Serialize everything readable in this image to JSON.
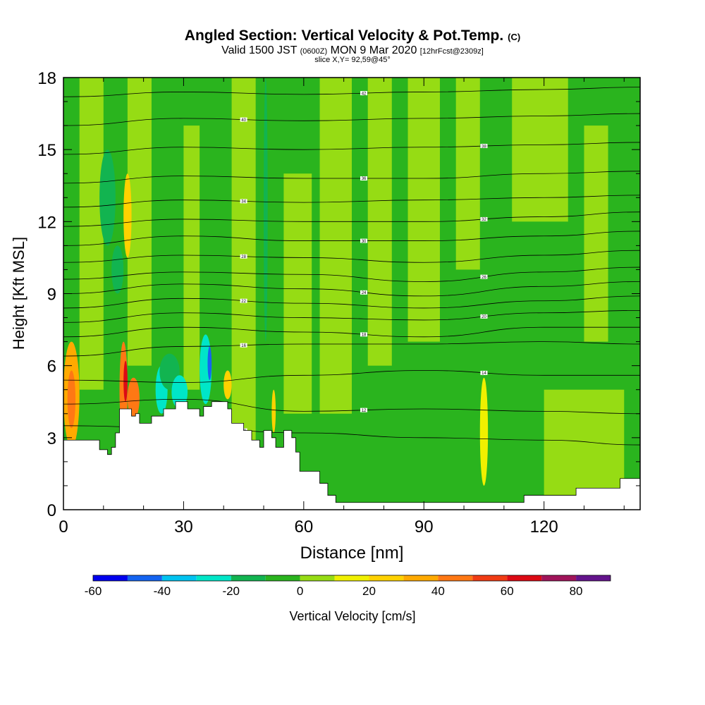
{
  "chart_data": {
    "type": "heatmap",
    "title": "Angled Section: Vertical Velocity & Pot.Temp.",
    "title_unit": "(C)",
    "subtitle": {
      "valid": "Valid 1500 JST",
      "utc": "(0600Z)",
      "date": "MON 9 Mar 2020",
      "forecast": "[12hrFcst@2309z]"
    },
    "slice_label": "slice X,Y= 92,59@45°",
    "xlabel": "Distance [nm]",
    "ylabel": "Height [Kft MSL]",
    "xlim": [
      0,
      144
    ],
    "ylim": [
      0,
      18
    ],
    "x_ticks": [
      "0",
      "30",
      "60",
      "90",
      "120"
    ],
    "y_ticks": [
      "0",
      "3",
      "6",
      "9",
      "12",
      "15",
      "18"
    ],
    "terrain_kft": [
      [
        0,
        2.9
      ],
      [
        3,
        2.9
      ],
      [
        6,
        2.9
      ],
      [
        9,
        2.5
      ],
      [
        11,
        2.3
      ],
      [
        12,
        2.6
      ],
      [
        13,
        3.2
      ],
      [
        14,
        4.2
      ],
      [
        16,
        4.2
      ],
      [
        17,
        3.9
      ],
      [
        18,
        4.0
      ],
      [
        19,
        3.6
      ],
      [
        21,
        3.6
      ],
      [
        22,
        3.9
      ],
      [
        24,
        3.9
      ],
      [
        25,
        4.2
      ],
      [
        27,
        4.2
      ],
      [
        28,
        4.5
      ],
      [
        30,
        4.5
      ],
      [
        31,
        4.2
      ],
      [
        33,
        4.2
      ],
      [
        34,
        3.9
      ],
      [
        35,
        4.3
      ],
      [
        37,
        4.5
      ],
      [
        40,
        4.5
      ],
      [
        41,
        4.2
      ],
      [
        42,
        3.6
      ],
      [
        45,
        3.3
      ],
      [
        47,
        2.9
      ],
      [
        49,
        2.6
      ],
      [
        50,
        3.3
      ],
      [
        52,
        3.0
      ],
      [
        53,
        2.6
      ],
      [
        55,
        3.3
      ],
      [
        57,
        3.0
      ],
      [
        58,
        2.4
      ],
      [
        59,
        1.6
      ],
      [
        62,
        1.6
      ],
      [
        64,
        1.1
      ],
      [
        66,
        0.6
      ],
      [
        68,
        0.3
      ],
      [
        80,
        0.3
      ],
      [
        90,
        0.3
      ],
      [
        100,
        0.3
      ],
      [
        110,
        0.3
      ],
      [
        114,
        0.3
      ],
      [
        115,
        0.6
      ],
      [
        125,
        0.6
      ],
      [
        128,
        0.9
      ],
      [
        138,
        0.9
      ],
      [
        139,
        1.3
      ],
      [
        144,
        1.3
      ]
    ],
    "colorbar": {
      "label": "Vertical Velocity [cm/s]",
      "tick_labels": [
        "-60",
        "-40",
        "-20",
        "0",
        "20",
        "40",
        "60",
        "80"
      ],
      "levels": [
        -60,
        -50,
        -40,
        -30,
        -20,
        -10,
        0,
        10,
        20,
        30,
        40,
        50,
        60,
        70,
        80,
        90
      ],
      "colors": [
        "#0000ee",
        "#1464f0",
        "#00c3f0",
        "#00e6c8",
        "#12b450",
        "#2ab41e",
        "#96dc14",
        "#f0f000",
        "#ffd200",
        "#ffaa00",
        "#ff7814",
        "#f03c14",
        "#dc0a14",
        "#a0145a",
        "#64148c"
      ]
    },
    "background_regions": [
      {
        "x": [
          0,
          144
        ],
        "y": [
          0,
          18
        ],
        "level": -10
      },
      {
        "x": [
          4,
          10
        ],
        "y": [
          5,
          18
        ],
        "level": 0
      },
      {
        "x": [
          16,
          22
        ],
        "y": [
          6,
          18
        ],
        "level": 0
      },
      {
        "x": [
          30,
          34
        ],
        "y": [
          5,
          16
        ],
        "level": 0
      },
      {
        "x": [
          42,
          48
        ],
        "y": [
          2,
          18
        ],
        "level": 0
      },
      {
        "x": [
          55,
          62
        ],
        "y": [
          4,
          14
        ],
        "level": 0
      },
      {
        "x": [
          64,
          72
        ],
        "y": [
          4,
          18
        ],
        "level": 0
      },
      {
        "x": [
          76,
          82
        ],
        "y": [
          6,
          18
        ],
        "level": 0
      },
      {
        "x": [
          86,
          94
        ],
        "y": [
          7,
          18
        ],
        "level": 0
      },
      {
        "x": [
          98,
          104
        ],
        "y": [
          10,
          18
        ],
        "level": 0
      },
      {
        "x": [
          112,
          126
        ],
        "y": [
          12,
          18
        ],
        "level": 0
      },
      {
        "x": [
          130,
          136
        ],
        "y": [
          7,
          16
        ],
        "level": 0
      },
      {
        "x": [
          70,
          90
        ],
        "y": [
          0,
          3
        ],
        "level": -10
      },
      {
        "x": [
          120,
          140
        ],
        "y": [
          0,
          5
        ],
        "level": 0
      }
    ],
    "velocity_cells": [
      {
        "x": [
          0,
          4
        ],
        "y": [
          2.6,
          7.0
        ],
        "level": 30
      },
      {
        "x": [
          1,
          3
        ],
        "y": [
          3.4,
          5.8
        ],
        "level": 40
      },
      {
        "x": [
          14,
          16
        ],
        "y": [
          3.0,
          7.0
        ],
        "level": 40
      },
      {
        "x": [
          15,
          16
        ],
        "y": [
          4.5,
          6.2
        ],
        "level": 60
      },
      {
        "x": [
          16,
          19
        ],
        "y": [
          3.8,
          5.5
        ],
        "level": 40
      },
      {
        "x": [
          15,
          17
        ],
        "y": [
          10.5,
          14.0
        ],
        "level": 20
      },
      {
        "x": [
          23,
          26
        ],
        "y": [
          4.0,
          6.0
        ],
        "level": -30
      },
      {
        "x": [
          24,
          29
        ],
        "y": [
          5.0,
          6.5
        ],
        "level": -20
      },
      {
        "x": [
          27,
          31
        ],
        "y": [
          4.2,
          5.6
        ],
        "level": -30
      },
      {
        "x": [
          34,
          37
        ],
        "y": [
          4.4,
          7.3
        ],
        "level": -30
      },
      {
        "x": [
          36,
          37
        ],
        "y": [
          5.4,
          6.8
        ],
        "level": -50
      },
      {
        "x": [
          40,
          42
        ],
        "y": [
          4.6,
          5.8
        ],
        "level": 20
      },
      {
        "x": [
          52,
          53
        ],
        "y": [
          3.2,
          5.0
        ],
        "level": 20
      },
      {
        "x": [
          104,
          106
        ],
        "y": [
          1.0,
          5.5
        ],
        "level": 10
      },
      {
        "x": [
          9,
          13
        ],
        "y": [
          11.0,
          15.0
        ],
        "level": -20
      },
      {
        "x": [
          12,
          15
        ],
        "y": [
          9.0,
          11.0
        ],
        "level": -20
      },
      {
        "x": [
          50,
          51
        ],
        "y": [
          7.0,
          18.0
        ],
        "level": -20
      }
    ],
    "isentropes": [
      {
        "label": "10",
        "x": [
          0,
          30,
          60,
          90,
          120,
          144
        ],
        "y": [
          3.5,
          3.4,
          3.2,
          3.0,
          2.9,
          2.7
        ]
      },
      {
        "label": "12",
        "x": [
          0,
          30,
          60,
          90,
          120,
          144
        ],
        "y": [
          4.4,
          4.6,
          4.1,
          4.2,
          4.1,
          4.0
        ]
      },
      {
        "label": "14",
        "x": [
          0,
          30,
          60,
          90,
          120,
          144
        ],
        "y": [
          5.4,
          5.3,
          5.6,
          5.8,
          5.6,
          5.6
        ]
      },
      {
        "label": "16",
        "x": [
          0,
          30,
          60,
          90,
          120,
          144
        ],
        "y": [
          6.4,
          6.8,
          6.9,
          6.9,
          7.0,
          6.9
        ]
      },
      {
        "label": "18",
        "x": [
          0,
          30,
          60,
          90,
          120,
          144
        ],
        "y": [
          7.2,
          7.6,
          7.4,
          7.2,
          7.6,
          7.6
        ]
      },
      {
        "label": "20",
        "x": [
          0,
          30,
          60,
          90,
          120,
          144
        ],
        "y": [
          7.8,
          8.2,
          8.0,
          7.9,
          8.2,
          8.3
        ]
      },
      {
        "label": "22",
        "x": [
          0,
          30,
          60,
          90,
          120,
          144
        ],
        "y": [
          8.4,
          8.8,
          8.6,
          8.4,
          8.7,
          8.9
        ]
      },
      {
        "label": "24",
        "x": [
          0,
          30,
          60,
          90,
          120,
          144
        ],
        "y": [
          9.0,
          9.4,
          9.2,
          8.9,
          9.3,
          9.5
        ]
      },
      {
        "label": "26",
        "x": [
          0,
          30,
          60,
          90,
          120,
          144
        ],
        "y": [
          9.6,
          9.9,
          9.8,
          9.5,
          9.9,
          10.1
        ]
      },
      {
        "label": "28",
        "x": [
          0,
          30,
          60,
          90,
          120,
          144
        ],
        "y": [
          10.3,
          10.6,
          10.5,
          10.3,
          10.6,
          10.8
        ]
      },
      {
        "label": "30",
        "x": [
          0,
          30,
          60,
          90,
          120,
          144
        ],
        "y": [
          11.0,
          11.4,
          11.2,
          11.2,
          11.4,
          11.6
        ]
      },
      {
        "label": "32",
        "x": [
          0,
          30,
          60,
          90,
          120,
          144
        ],
        "y": [
          11.8,
          12.1,
          12.0,
          12.0,
          12.2,
          12.4
        ]
      },
      {
        "label": "34",
        "x": [
          0,
          30,
          60,
          90,
          120,
          144
        ],
        "y": [
          12.6,
          12.9,
          12.8,
          12.9,
          13.0,
          13.1
        ]
      },
      {
        "label": "36",
        "x": [
          0,
          30,
          60,
          90,
          120,
          144
        ],
        "y": [
          13.6,
          13.9,
          13.8,
          13.8,
          14.0,
          14.1
        ]
      },
      {
        "label": "38",
        "x": [
          0,
          30,
          60,
          90,
          120,
          144
        ],
        "y": [
          14.8,
          15.1,
          15.0,
          15.1,
          15.2,
          15.3
        ]
      },
      {
        "label": "40",
        "x": [
          0,
          30,
          60,
          90,
          120,
          144
        ],
        "y": [
          16.0,
          16.3,
          16.2,
          16.3,
          16.4,
          16.5
        ]
      },
      {
        "label": "42",
        "x": [
          0,
          30,
          60,
          90,
          120,
          144
        ],
        "y": [
          17.2,
          17.4,
          17.3,
          17.4,
          17.5,
          17.6
        ]
      }
    ]
  }
}
